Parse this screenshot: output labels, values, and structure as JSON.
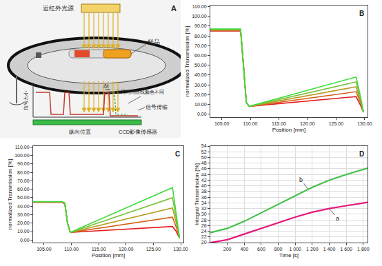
{
  "diagram": {
    "label": "A",
    "light_source": "近红外光源",
    "sample": "样品",
    "curves_note": "不同时间曲线颜色不同",
    "signal": "信号传输",
    "sensor": "CCD影像传感器",
    "y_axis": "信号大小",
    "x_axis": "纵向位置",
    "delta": "Δt"
  },
  "chart_data": [
    {
      "type": "line",
      "title": "B",
      "x_label": "Position [mm]",
      "y_label": "normalized Transmission [%]",
      "x": [
        103,
        105,
        107,
        108.3,
        108.8,
        109.3,
        109.8,
        112,
        116,
        120,
        124,
        128.5,
        129.2,
        129.8
      ],
      "series": [
        {
          "color": "#e41a1c",
          "values": [
            85,
            85,
            85.5,
            85,
            50,
            12,
            8,
            9.2,
            11.3,
            13.5,
            15.6,
            18,
            10,
            2
          ]
        },
        {
          "color": "#d4621a",
          "values": [
            85.5,
            85.5,
            86,
            85.5,
            50,
            12,
            8,
            9.8,
            13,
            16.2,
            19.4,
            23,
            13,
            2
          ]
        },
        {
          "color": "#b89a22",
          "values": [
            86,
            86,
            86.5,
            86,
            50,
            12,
            8,
            10.4,
            14.6,
            18.9,
            23.2,
            28,
            15,
            2
          ]
        },
        {
          "color": "#7cc23a",
          "values": [
            86.5,
            86.5,
            87,
            86.5,
            50,
            12,
            8,
            11,
            16.3,
            21.6,
            27,
            33,
            18,
            2
          ]
        },
        {
          "color": "#3ddc3d",
          "values": [
            87,
            87,
            87.5,
            87,
            50,
            12,
            8,
            11.5,
            18,
            24.4,
            30.8,
            38,
            20,
            2
          ]
        }
      ],
      "xlim": [
        103,
        130.5
      ],
      "ylim": [
        -3,
        111
      ],
      "xticks": [
        {
          "value": 105,
          "label": "105.00"
        },
        {
          "value": 110,
          "label": "110.00"
        },
        {
          "value": 115,
          "label": "115.00"
        },
        {
          "value": 120,
          "label": "120.00"
        },
        {
          "value": 125,
          "label": "125.00"
        },
        {
          "value": 130,
          "label": "130.00"
        }
      ],
      "yticks": [
        {
          "value": 0,
          "label": "0.00"
        },
        {
          "value": 10,
          "label": "10.00"
        },
        {
          "value": 20,
          "label": "20.00"
        },
        {
          "value": 30,
          "label": "30.00"
        },
        {
          "value": 40,
          "label": "40.00"
        },
        {
          "value": 50,
          "label": "50.00"
        },
        {
          "value": 60,
          "label": "60.00"
        },
        {
          "value": 70,
          "label": "70.00"
        },
        {
          "value": 80,
          "label": "80.00"
        },
        {
          "value": 90,
          "label": "90.00"
        },
        {
          "value": 100,
          "label": "100.00"
        },
        {
          "value": 110,
          "label": "110.00"
        }
      ],
      "grid": false
    },
    {
      "type": "line",
      "title": "C",
      "x_label": "Position [mm]",
      "y_label": "normalized Transmission [%]",
      "x": [
        103,
        105,
        107,
        108.3,
        108.8,
        109.3,
        109.8,
        112,
        116,
        120,
        124,
        128.5,
        129.2,
        129.8
      ],
      "series": [
        {
          "color": "#e41a1c",
          "values": [
            44.5,
            44.5,
            45,
            44.5,
            43,
            20,
            9,
            9.8,
            11.3,
            12.8,
            14.3,
            16,
            10,
            2
          ]
        },
        {
          "color": "#d4621a",
          "values": [
            44.8,
            44.8,
            45.2,
            44.8,
            43,
            20,
            9,
            11.1,
            15,
            18.8,
            22.7,
            27,
            15,
            2
          ]
        },
        {
          "color": "#b89a22",
          "values": [
            45,
            45,
            45.5,
            45,
            43.5,
            20,
            9,
            12.4,
            18.6,
            24.8,
            31,
            38,
            20,
            2
          ]
        },
        {
          "color": "#7cc23a",
          "values": [
            45.2,
            45.2,
            45.7,
            45.2,
            43.5,
            20,
            9,
            13.8,
            22.6,
            31.3,
            40.1,
            50,
            25,
            2
          ]
        },
        {
          "color": "#3ddc3d",
          "values": [
            45.5,
            45.5,
            46,
            45.5,
            44,
            20,
            9,
            15.3,
            26.6,
            37.9,
            49.2,
            62,
            30,
            2
          ]
        }
      ],
      "xlim": [
        103,
        130.5
      ],
      "ylim": [
        -3,
        111
      ],
      "xticks": [
        {
          "value": 105,
          "label": "105.00"
        },
        {
          "value": 110,
          "label": "110.00"
        },
        {
          "value": 115,
          "label": "115.00"
        },
        {
          "value": 120,
          "label": "120.00"
        },
        {
          "value": 125,
          "label": "125.00"
        },
        {
          "value": 130,
          "label": "130.00"
        }
      ],
      "yticks": [
        {
          "value": 0,
          "label": "0.00"
        },
        {
          "value": 10,
          "label": "10.00"
        },
        {
          "value": 20,
          "label": "20.00"
        },
        {
          "value": 30,
          "label": "30.00"
        },
        {
          "value": 40,
          "label": "40.00"
        },
        {
          "value": 50,
          "label": "50.00"
        },
        {
          "value": 60,
          "label": "60.00"
        },
        {
          "value": 70,
          "label": "70.00"
        },
        {
          "value": 80,
          "label": "80.00"
        },
        {
          "value": 90,
          "label": "90.00"
        },
        {
          "value": 100,
          "label": "100.00"
        },
        {
          "value": 110,
          "label": "110.00"
        }
      ],
      "grid": false
    },
    {
      "type": "line",
      "title": "D",
      "x_label": "Time [s]",
      "y_label": "Integral Transmission [%]",
      "x": [
        0,
        200,
        400,
        600,
        800,
        1000,
        1200,
        1400,
        1600,
        1850
      ],
      "series": [
        {
          "color": "#44c04a",
          "values": [
            23.5,
            25,
            27.5,
            30.5,
            33.5,
            36.5,
            39.5,
            42,
            44,
            46.2
          ]
        },
        {
          "color": "#e6197d",
          "values": [
            20,
            21,
            23,
            25,
            27,
            29,
            30.7,
            32,
            33,
            34.2
          ]
        }
      ],
      "annotations": [
        {
          "text": "b",
          "x": 1150,
          "y": 38.8
        },
        {
          "text": "a",
          "x": 1400,
          "y": 32
        }
      ],
      "xlim": [
        0,
        1850
      ],
      "ylim": [
        20,
        54
      ],
      "xticks": [
        200,
        400,
        600,
        800,
        {
          "value": 1000,
          "label": "1 000"
        },
        {
          "value": 1200,
          "label": "1 200"
        },
        {
          "value": 1400,
          "label": "1 400"
        },
        {
          "value": 1600,
          "label": "1 600"
        },
        {
          "value": 1800,
          "label": "1 800"
        }
      ],
      "yticks": [
        20,
        22,
        24,
        26,
        28,
        30,
        32,
        34,
        36,
        38,
        40,
        42,
        44,
        46,
        48,
        50,
        52,
        54
      ],
      "grid": true
    }
  ]
}
